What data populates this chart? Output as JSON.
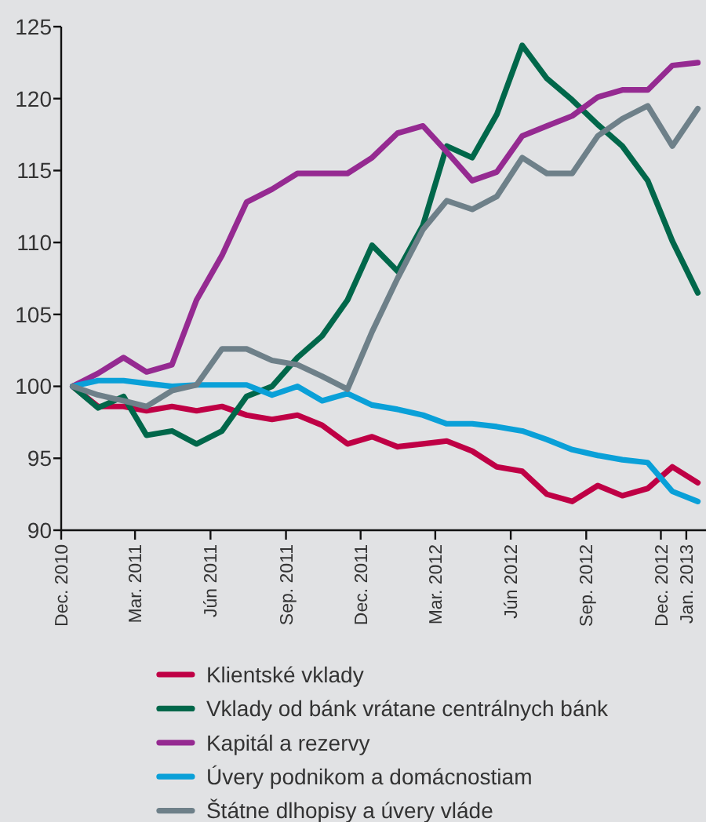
{
  "chart_data": {
    "type": "line",
    "x": [
      "2010-12-15",
      "2011-01-15",
      "2011-02-15",
      "2011-03-15",
      "2011-04-15",
      "2011-05-15",
      "2011-06-15",
      "2011-07-15",
      "2011-08-15",
      "2011-09-15",
      "2011-10-15",
      "2011-11-15",
      "2011-12-15",
      "2012-01-15",
      "2012-02-15",
      "2012-03-15",
      "2012-04-15",
      "2012-05-15",
      "2012-06-15",
      "2012-07-15",
      "2012-08-15",
      "2012-09-15",
      "2012-10-15",
      "2012-11-15",
      "2012-12-15",
      "2013-01-15"
    ],
    "xlim": [
      "2010-12-01",
      "2013-01-25"
    ],
    "xticks": [
      {
        "value": "2010-12-01",
        "label": "Dec. 2010"
      },
      {
        "value": "2011-03-01",
        "label": "Mar. 2011"
      },
      {
        "value": "2011-06-01",
        "label": "Jún 2011"
      },
      {
        "value": "2011-09-01",
        "label": "Sep. 2011"
      },
      {
        "value": "2011-12-01",
        "label": "Dec. 2011"
      },
      {
        "value": "2012-03-01",
        "label": "Mar. 2012"
      },
      {
        "value": "2012-06-01",
        "label": "Jún 2012"
      },
      {
        "value": "2012-09-01",
        "label": "Sep. 2012"
      },
      {
        "value": "2012-12-01",
        "label": "Dec. 2012"
      },
      {
        "value": "2013-01-01",
        "label": "Jan. 2013"
      }
    ],
    "ylim": [
      90,
      125
    ],
    "yticks": [
      90,
      95,
      100,
      105,
      110,
      115,
      120,
      125
    ],
    "series": [
      {
        "name": "Klientské vklady",
        "color": "#bf0045",
        "values": [
          100,
          98.6,
          98.6,
          98.3,
          98.6,
          98.3,
          98.6,
          98.0,
          97.7,
          98.0,
          97.3,
          96.0,
          96.5,
          95.8,
          96.0,
          96.2,
          95.5,
          94.4,
          94.1,
          92.5,
          92.0,
          93.1,
          92.4,
          92.9,
          94.4,
          93.3
        ]
      },
      {
        "name": "Vklady od bánk vrátane centrálnych bánk",
        "color": "#00674a",
        "values": [
          100,
          98.5,
          99.3,
          96.6,
          96.9,
          96.0,
          96.9,
          99.3,
          100.0,
          102.0,
          103.5,
          106.0,
          109.8,
          108.0,
          111.2,
          116.7,
          115.9,
          118.9,
          123.7,
          121.4,
          119.9,
          118.2,
          116.7,
          114.3,
          110.1,
          106.5
        ]
      },
      {
        "name": "Kapitál a rezervy",
        "color": "#952a91",
        "values": [
          100,
          100.9,
          102.0,
          101.0,
          101.5,
          106.0,
          109.1,
          112.8,
          113.7,
          114.8,
          114.8,
          114.8,
          115.9,
          117.6,
          118.1,
          116.3,
          114.3,
          114.9,
          117.4,
          118.1,
          118.8,
          120.1,
          120.6,
          120.6,
          122.3,
          122.5
        ]
      },
      {
        "name": "Úvery podnikom a domácnostiam",
        "color": "#0aa0d8",
        "values": [
          100,
          100.4,
          100.4,
          100.2,
          100.0,
          100.1,
          100.1,
          100.1,
          99.4,
          100.0,
          99.0,
          99.5,
          98.7,
          98.4,
          98.0,
          97.4,
          97.4,
          97.2,
          96.9,
          96.3,
          95.6,
          95.2,
          94.9,
          94.7,
          92.7,
          92.0
        ]
      },
      {
        "name": "Štátne dlhopisy a úvery vláde",
        "color": "#6e8089",
        "values": [
          100,
          99.4,
          99.0,
          98.6,
          99.7,
          100.1,
          102.6,
          102.6,
          101.8,
          101.5,
          100.7,
          99.8,
          103.8,
          107.5,
          110.9,
          112.9,
          112.3,
          113.2,
          115.9,
          114.8,
          114.8,
          117.4,
          118.6,
          119.5,
          116.7,
          119.3
        ]
      }
    ],
    "legend": "bottom"
  }
}
